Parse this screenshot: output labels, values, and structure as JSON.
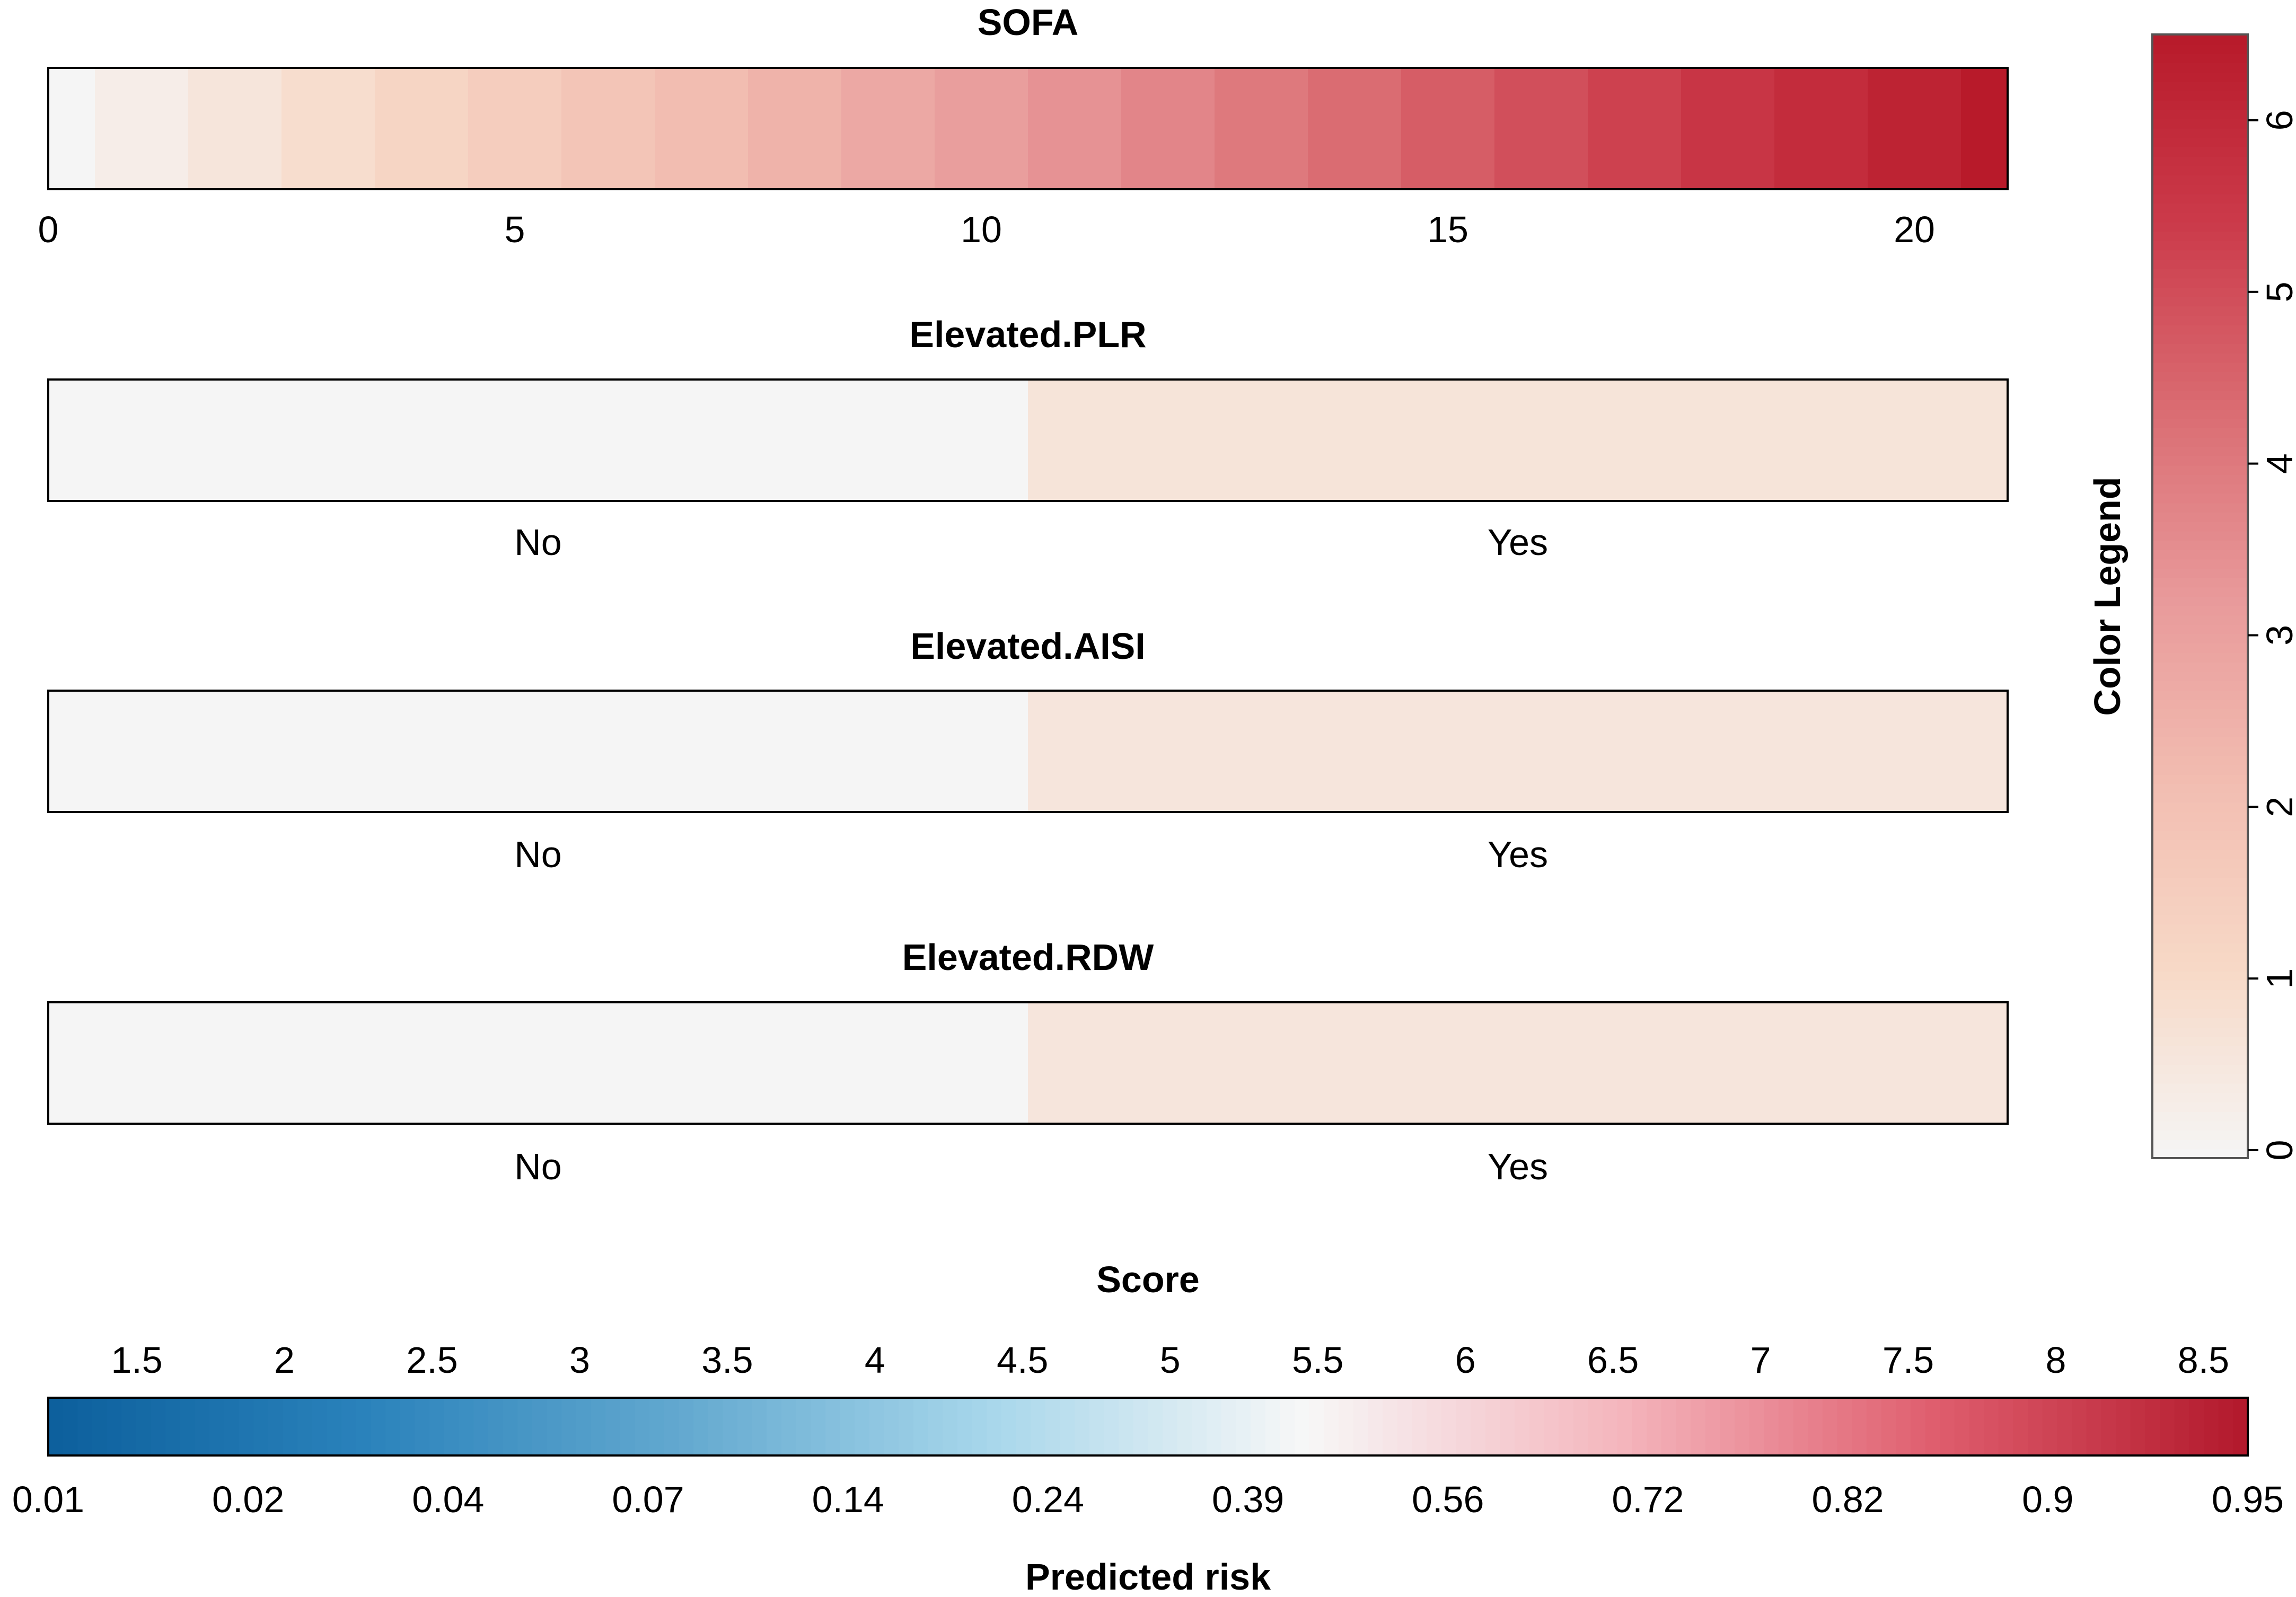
{
  "chart_data": {
    "type": "heatmap",
    "panels": [
      {
        "title": "SOFA",
        "kind": "continuous",
        "range": [
          0,
          21
        ],
        "tick_values": [
          0,
          5,
          10,
          15,
          20
        ],
        "tick_labels": [
          "0",
          "5",
          "10",
          "15",
          "20"
        ],
        "cell_values": [
          0,
          0.31,
          0.62,
          0.93,
          1.24,
          1.55,
          1.86,
          2.17,
          2.48,
          2.79,
          3.1,
          3.41,
          3.72,
          4.03,
          4.34,
          4.65,
          4.96,
          5.27,
          5.58,
          5.89,
          6.2,
          6.51
        ]
      },
      {
        "title": "Elevated.PLR",
        "kind": "categorical",
        "categories": [
          "No",
          "Yes"
        ],
        "legend_values": [
          0,
          0.65
        ]
      },
      {
        "title": "Elevated.AISI",
        "kind": "categorical",
        "categories": [
          "No",
          "Yes"
        ],
        "legend_values": [
          0,
          0.6
        ]
      },
      {
        "title": "Elevated.RDW",
        "kind": "categorical",
        "categories": [
          "No",
          "Yes"
        ],
        "legend_values": [
          0,
          0.6
        ]
      }
    ],
    "color_legend": {
      "title": "Color Legend",
      "range": [
        0,
        6.5
      ],
      "tick_values": [
        0,
        1,
        2,
        3,
        4,
        5,
        6
      ],
      "tick_labels": [
        "0",
        "1",
        "2",
        "3",
        "4",
        "5",
        "6"
      ],
      "colors": [
        "#f5f5f5",
        "#f7d9c7",
        "#f2bdb1",
        "#e8999a",
        "#da6c72",
        "#cb3a4a",
        "#b81a2a"
      ]
    },
    "score_axis": {
      "title": "Score",
      "range": [
        1.2,
        8.65
      ],
      "tick_values": [
        1.5,
        2,
        2.5,
        3,
        3.5,
        4,
        4.5,
        5,
        5.5,
        6,
        6.5,
        7,
        7.5,
        8,
        8.5
      ],
      "tick_labels": [
        "1.5",
        "2",
        "2.5",
        "3",
        "3.5",
        "4",
        "4.5",
        "5",
        "5.5",
        "6",
        "6.5",
        "7",
        "7.5",
        "8",
        "8.5"
      ],
      "colors": [
        "#0c5f9c",
        "#2a82bb",
        "#62a8cf",
        "#a8d7eb",
        "#f7f7f7",
        "#f4b6bd",
        "#df5e6e",
        "#b2182b"
      ]
    },
    "risk_axis": {
      "title": "Predicted risk",
      "tick_labels": [
        "0.01",
        "0.02",
        "0.04",
        "0.07",
        "0.14",
        "0.24",
        "0.39",
        "0.56",
        "0.72",
        "0.82",
        "0.9",
        "0.95"
      ]
    }
  }
}
